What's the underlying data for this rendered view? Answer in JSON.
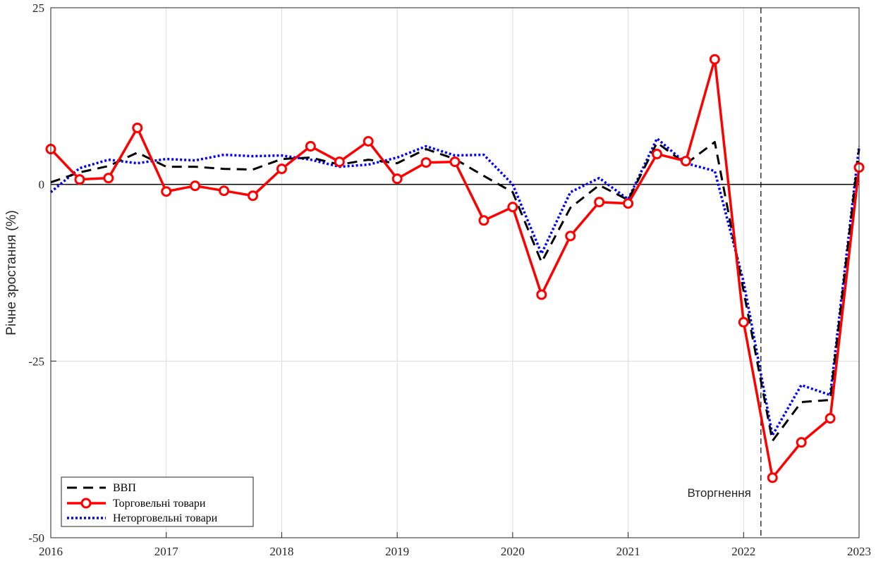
{
  "chart_data": {
    "type": "line",
    "title": "",
    "xlabel": "",
    "ylabel": "Річне зростання (%)",
    "xlim": [
      2016,
      2023
    ],
    "ylim": [
      -50,
      25
    ],
    "xticks": [
      "2016",
      "2017",
      "2018",
      "2019",
      "2020",
      "2021",
      "2022",
      "2023"
    ],
    "yticks": [
      "-50",
      "-25",
      "0",
      "25"
    ],
    "grid": true,
    "legend_position": "bottom-left",
    "annotation": {
      "text": "Вторгнення",
      "x": 2022.15
    },
    "series": [
      {
        "name": "ВВП",
        "style": "dashed",
        "color": "#000000",
        "x": [
          2016,
          2016.25,
          2016.5,
          2016.75,
          2017,
          2017.25,
          2017.5,
          2017.75,
          2018,
          2018.25,
          2018.5,
          2018.75,
          2019,
          2019.25,
          2019.5,
          2019.75,
          2020,
          2020.25,
          2020.5,
          2020.75,
          2021,
          2021.25,
          2021.5,
          2021.75,
          2022,
          2022.25,
          2022.5,
          2022.75,
          2023
        ],
        "values": [
          0.3,
          1.7,
          2.6,
          4.5,
          2.5,
          2.5,
          2.2,
          2.1,
          3.6,
          3.8,
          2.8,
          3.5,
          3.0,
          5.0,
          3.6,
          1.2,
          -1.1,
          -11.0,
          -3.3,
          -0.1,
          -2.2,
          5.9,
          2.9,
          6.0,
          -15.1,
          -36.3,
          -30.8,
          -30.5,
          5.0
        ]
      },
      {
        "name": "Торговельні товари",
        "style": "solid-circle",
        "color": "#ff0000",
        "x": [
          2016,
          2016.25,
          2016.5,
          2016.75,
          2017,
          2017.25,
          2017.5,
          2017.75,
          2018,
          2018.25,
          2018.5,
          2018.75,
          2019,
          2019.25,
          2019.5,
          2019.75,
          2020,
          2020.25,
          2020.5,
          2020.75,
          2021,
          2021.25,
          2021.5,
          2021.75,
          2022,
          2022.25,
          2022.5,
          2022.75,
          2023
        ],
        "values": [
          5.0,
          0.7,
          0.9,
          8.0,
          -1.0,
          -0.2,
          -0.9,
          -1.6,
          2.2,
          5.4,
          3.2,
          6.1,
          0.8,
          3.1,
          3.2,
          -5.1,
          -3.2,
          -15.6,
          -7.3,
          -2.5,
          -2.7,
          4.3,
          3.3,
          17.7,
          -19.5,
          -41.5,
          -36.5,
          -33.1,
          2.4
        ]
      },
      {
        "name": "Неторговельні товари",
        "style": "dotted",
        "color": "#0000ff",
        "x": [
          2016,
          2016.25,
          2016.5,
          2016.75,
          2017,
          2017.25,
          2017.5,
          2017.75,
          2018,
          2018.25,
          2018.5,
          2018.75,
          2019,
          2019.25,
          2019.5,
          2019.75,
          2020,
          2020.25,
          2020.5,
          2020.75,
          2021,
          2021.25,
          2021.5,
          2021.75,
          2022,
          2022.25,
          2022.5,
          2022.75,
          2023
        ],
        "values": [
          -1.1,
          2.3,
          3.5,
          3.0,
          3.6,
          3.4,
          4.2,
          4.0,
          4.1,
          3.5,
          2.5,
          2.8,
          3.8,
          5.4,
          4.1,
          4.2,
          0.0,
          -9.8,
          -1.1,
          0.9,
          -2.1,
          6.5,
          3.0,
          1.9,
          -13.8,
          -35.5,
          -28.4,
          -29.8,
          5.4
        ]
      }
    ]
  }
}
